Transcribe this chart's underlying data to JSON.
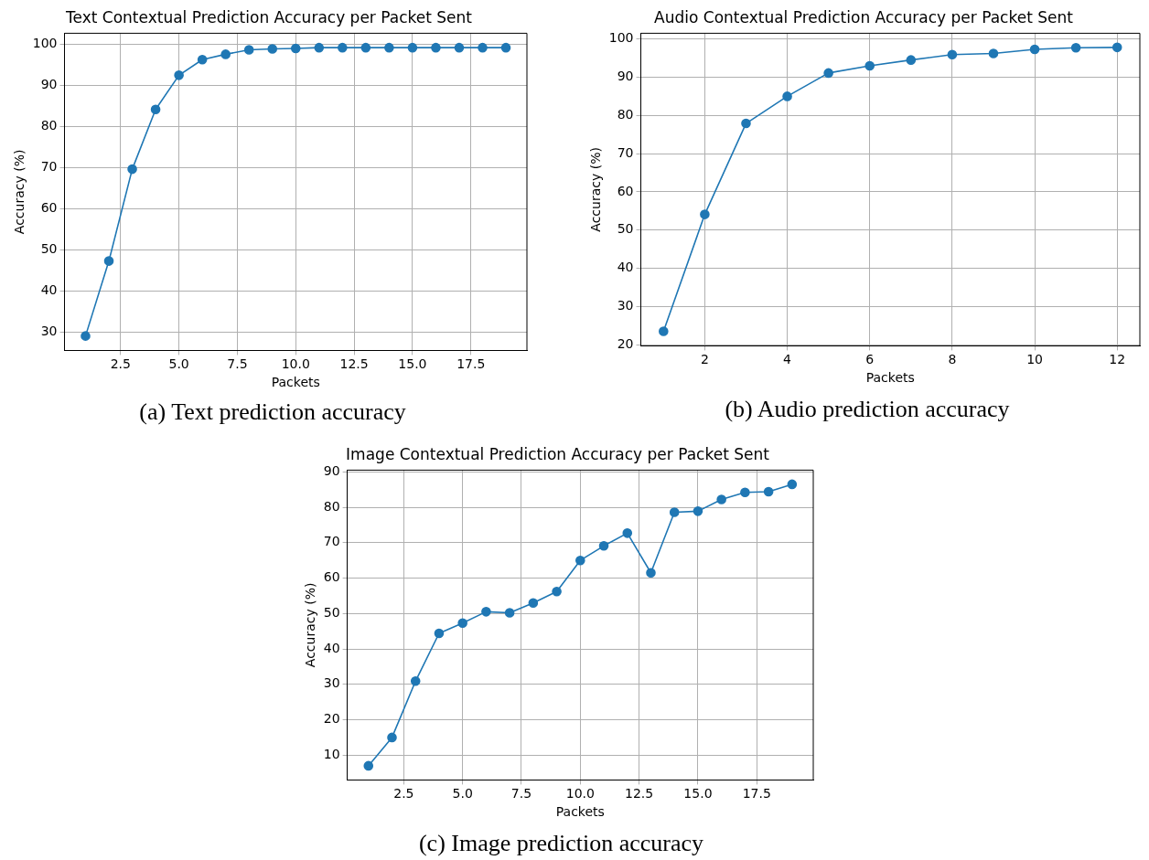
{
  "chart_data": [
    {
      "type": "line",
      "title": "Text Contextual Prediction Accuracy per Packet Sent",
      "xlabel": "Packets",
      "ylabel": "Accuracy (%)",
      "annotations": [
        "(a) Text prediction accuracy"
      ],
      "x": [
        1,
        2,
        3,
        4,
        5,
        6,
        7,
        8,
        9,
        10,
        11,
        12,
        13,
        14,
        15,
        16,
        17,
        18,
        19
      ],
      "series": [
        {
          "color": "#1f77b4",
          "values": [
            29.1,
            47.3,
            69.6,
            84.1,
            92.4,
            96.2,
            97.5,
            98.6,
            98.8,
            98.9,
            99.1,
            99.1,
            99.1,
            99.1,
            99.1,
            99.1,
            99.1,
            99.1,
            99.1
          ]
        }
      ],
      "xlim": [
        0.1,
        19.9
      ],
      "xticks": [
        {
          "value": 2.5,
          "label": "2.5"
        },
        {
          "value": 5,
          "label": "5.0"
        },
        {
          "value": 7.5,
          "label": "7.5"
        },
        {
          "value": 10,
          "label": "10.0"
        },
        {
          "value": 12.5,
          "label": "12.5"
        },
        {
          "value": 15,
          "label": "15.0"
        },
        {
          "value": 17.5,
          "label": "17.5"
        }
      ],
      "ylim": [
        25.6,
        102.6
      ],
      "yticks": [
        30,
        40,
        50,
        60,
        70,
        80,
        90,
        100
      ],
      "grid": true,
      "legend": false,
      "marker": "circle",
      "line_style": "solid"
    },
    {
      "type": "line",
      "title": "Audio Contextual Prediction Accuracy per Packet Sent",
      "xlabel": "Packets",
      "ylabel": "Accuracy (%)",
      "annotations": [
        "(b) Audio prediction accuracy"
      ],
      "x": [
        1,
        2,
        3,
        4,
        5,
        6,
        7,
        8,
        9,
        10,
        11,
        12
      ],
      "series": [
        {
          "color": "#1f77b4",
          "values": [
            23.5,
            54.1,
            77.9,
            85.0,
            91.1,
            93.0,
            94.5,
            95.9,
            96.2,
            97.3,
            97.7,
            97.8
          ]
        }
      ],
      "xlim": [
        0.45,
        12.55
      ],
      "xticks": [
        2,
        4,
        6,
        8,
        10,
        12
      ],
      "ylim": [
        19.7,
        101.5
      ],
      "yticks": [
        20,
        30,
        40,
        50,
        60,
        70,
        80,
        90,
        100
      ],
      "grid": true,
      "legend": false,
      "marker": "circle",
      "line_style": "solid"
    },
    {
      "type": "line",
      "title": "Image Contextual Prediction Accuracy per Packet Sent",
      "xlabel": "Packets",
      "ylabel": "Accuracy (%)",
      "annotations": [
        "(c) Image prediction accuracy"
      ],
      "x": [
        1,
        2,
        3,
        4,
        5,
        6,
        7,
        8,
        9,
        10,
        11,
        12,
        13,
        14,
        15,
        16,
        17,
        18,
        19
      ],
      "series": [
        {
          "color": "#1f77b4",
          "values": [
            7.0,
            15.0,
            30.9,
            44.4,
            47.3,
            50.5,
            50.2,
            53.0,
            56.2,
            65.0,
            69.1,
            72.7,
            61.5,
            78.6,
            78.9,
            82.2,
            84.2,
            84.4,
            86.5
          ]
        }
      ],
      "xlim": [
        0.1,
        19.9
      ],
      "xticks": [
        {
          "value": 2.5,
          "label": "2.5"
        },
        {
          "value": 5,
          "label": "5.0"
        },
        {
          "value": 7.5,
          "label": "7.5"
        },
        {
          "value": 10,
          "label": "10.0"
        },
        {
          "value": 12.5,
          "label": "12.5"
        },
        {
          "value": 15,
          "label": "15.0"
        },
        {
          "value": 17.5,
          "label": "17.5"
        }
      ],
      "ylim": [
        3.0,
        90.5
      ],
      "yticks": [
        10,
        20,
        30,
        40,
        50,
        60,
        70,
        80,
        90
      ],
      "grid": true,
      "legend": false,
      "marker": "circle",
      "line_style": "solid"
    }
  ]
}
